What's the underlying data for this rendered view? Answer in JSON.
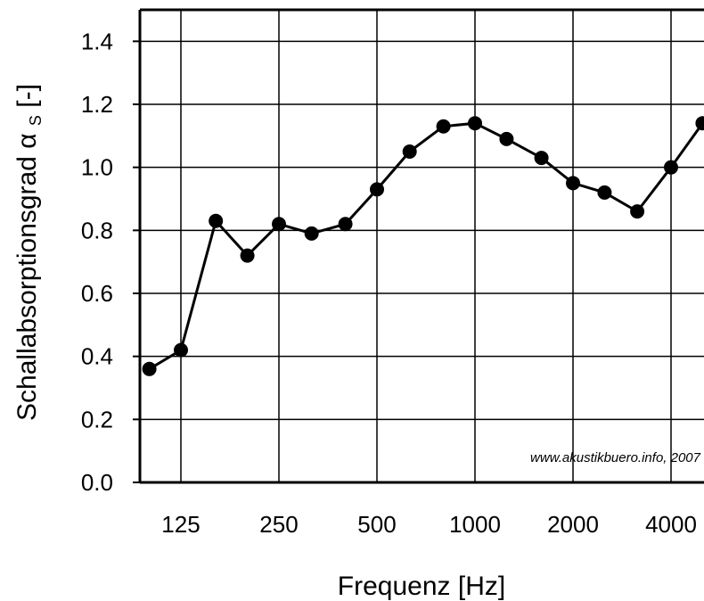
{
  "chart_data": {
    "type": "line",
    "xlabel": "Frequenz [Hz]",
    "ylabel": {
      "main": "Schallabsorptionsgrad ",
      "symbol": "α",
      "subscript": "S",
      "unit": " [-]"
    },
    "x_tick_labels": [
      "125",
      "250",
      "500",
      "1000",
      "2000",
      "4000"
    ],
    "y_tick_labels": [
      "0.0",
      "0.2",
      "0.4",
      "0.6",
      "0.8",
      "1.0",
      "1.2",
      "1.4"
    ],
    "ylim": [
      0,
      1.5
    ],
    "grid": true,
    "watermark": "www.akustikbuero.info, 2007",
    "series": [
      {
        "x": [
          100,
          125,
          160,
          200,
          250,
          315,
          400,
          500,
          630,
          800,
          1000,
          1250,
          1600,
          2000,
          2500,
          3150,
          4000,
          5000
        ],
        "y": [
          0.36,
          0.42,
          0.83,
          0.72,
          0.82,
          0.79,
          0.82,
          0.93,
          1.05,
          1.13,
          1.14,
          1.09,
          1.03,
          0.95,
          0.92,
          0.86,
          1.0,
          1.14
        ]
      }
    ],
    "colors": {
      "line": "#000000",
      "marker": "#000000",
      "grid": "#000000"
    }
  }
}
